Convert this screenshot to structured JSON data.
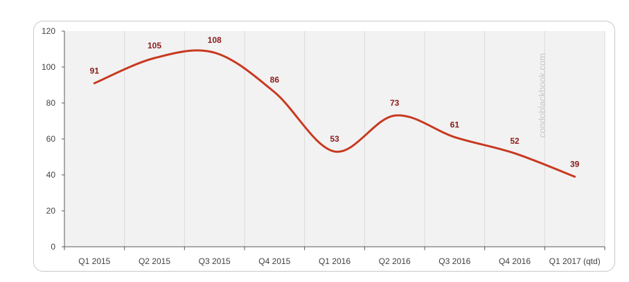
{
  "chart_data": {
    "type": "line",
    "categories": [
      "Q1 2015",
      "Q2 2015",
      "Q3 2015",
      "Q4 2015",
      "Q1 2016",
      "Q2 2016",
      "Q3 2016",
      "Q4 2016",
      "Q1 2017 (qtd)"
    ],
    "series": [
      {
        "values": [
          91,
          105,
          108,
          86,
          53,
          73,
          61,
          52,
          39
        ]
      }
    ],
    "ylim": [
      0,
      120
    ],
    "yticks": [
      0,
      20,
      40,
      60,
      80,
      100,
      120
    ],
    "grid": "vertical",
    "data_labels": true,
    "smooth": true
  },
  "watermark": "condoblackbook.com",
  "colors": {
    "line": "#c8391f",
    "data_label": "#8b1a1a",
    "plot_background": "#f2f2f2",
    "gridline": "#d9d9d9",
    "axis": "#595959",
    "frame": "#c9c9c9",
    "watermark": "#c8c8c8"
  }
}
